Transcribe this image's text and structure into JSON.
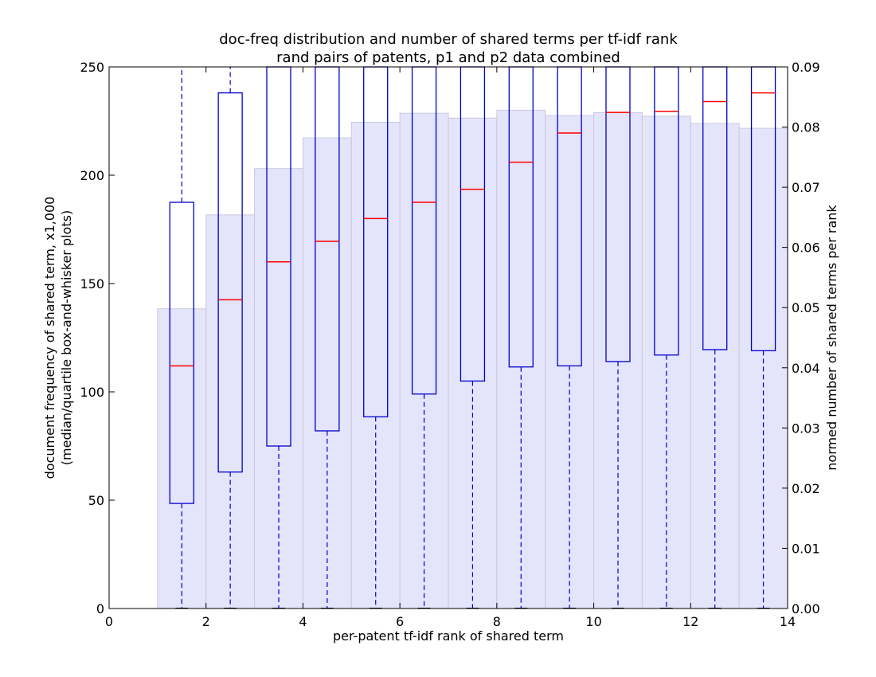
{
  "chart_data": {
    "type": "bar",
    "title": [
      "doc-freq distribution and number of shared terms per tf-idf rank",
      "rand pairs of patents, p1 and p2 data combined"
    ],
    "xlabel": "per-patent tf-idf rank of shared term",
    "ylabel": [
      "document frequency of shared term, x1,000",
      "(median/quartile box-and-whisker plots)"
    ],
    "y2label": "normed number of shared terms per rank",
    "xlim": [
      0,
      14
    ],
    "ylim": [
      0,
      250
    ],
    "y2lim": [
      0,
      0.09
    ],
    "x_ticks": [
      "0",
      "2",
      "4",
      "6",
      "8",
      "10",
      "12",
      "14"
    ],
    "y_ticks": [
      "0",
      "50",
      "100",
      "150",
      "200",
      "250"
    ],
    "y2_ticks": [
      "0.00",
      "0.01",
      "0.02",
      "0.03",
      "0.04",
      "0.05",
      "0.06",
      "0.07",
      "0.08",
      "0.09"
    ],
    "grid": false,
    "colors": {
      "hist_fill": "#e4e4fb",
      "hist_edge": "#c8c8e0",
      "box": "#0000cc",
      "median": "#ff0000"
    },
    "histogram": {
      "name": "normed number of shared terms per rank",
      "axis": "right",
      "bins": [
        {
          "x0": 1,
          "x1": 2,
          "value": 0.0498
        },
        {
          "x0": 2,
          "x1": 3,
          "value": 0.0654
        },
        {
          "x0": 3,
          "x1": 4,
          "value": 0.0731
        },
        {
          "x0": 4,
          "x1": 5,
          "value": 0.0782
        },
        {
          "x0": 5,
          "x1": 6,
          "value": 0.0808
        },
        {
          "x0": 6,
          "x1": 7,
          "value": 0.0823
        },
        {
          "x0": 7,
          "x1": 8,
          "value": 0.0815
        },
        {
          "x0": 8,
          "x1": 9,
          "value": 0.0828
        },
        {
          "x0": 9,
          "x1": 10,
          "value": 0.0819
        },
        {
          "x0": 10,
          "x1": 11,
          "value": 0.0824
        },
        {
          "x0": 11,
          "x1": 12,
          "value": 0.0818
        },
        {
          "x0": 12,
          "x1": 13,
          "value": 0.0806
        },
        {
          "x0": 13,
          "x1": 14,
          "value": 0.0798
        }
      ]
    },
    "boxplots": {
      "axis": "left",
      "boxes": [
        {
          "x": 1.5,
          "q1": 48.5,
          "median": 112,
          "q3": 187.5,
          "whisker_low": 0,
          "whisker_high": 250
        },
        {
          "x": 2.5,
          "q1": 63,
          "median": 142.5,
          "q3": 238,
          "whisker_low": 0,
          "whisker_high": 250
        },
        {
          "x": 3.5,
          "q1": 75,
          "median": 160,
          "q3": 250,
          "whisker_low": 0,
          "whisker_high": 250
        },
        {
          "x": 4.5,
          "q1": 82,
          "median": 169.5,
          "q3": 250,
          "whisker_low": 0,
          "whisker_high": 250
        },
        {
          "x": 5.5,
          "q1": 88.5,
          "median": 180,
          "q3": 250,
          "whisker_low": 0,
          "whisker_high": 250
        },
        {
          "x": 6.5,
          "q1": 99,
          "median": 187.5,
          "q3": 250,
          "whisker_low": 0,
          "whisker_high": 250
        },
        {
          "x": 7.5,
          "q1": 105,
          "median": 193.5,
          "q3": 250,
          "whisker_low": 0,
          "whisker_high": 250
        },
        {
          "x": 8.5,
          "q1": 111.5,
          "median": 206,
          "q3": 250,
          "whisker_low": 0,
          "whisker_high": 250
        },
        {
          "x": 9.5,
          "q1": 112,
          "median": 219.5,
          "q3": 250,
          "whisker_low": 0,
          "whisker_high": 250
        },
        {
          "x": 10.5,
          "q1": 114,
          "median": 229,
          "q3": 250,
          "whisker_low": 0,
          "whisker_high": 250
        },
        {
          "x": 11.5,
          "q1": 117,
          "median": 229.5,
          "q3": 250,
          "whisker_low": 0,
          "whisker_high": 250
        },
        {
          "x": 12.5,
          "q1": 119.5,
          "median": 234,
          "q3": 250,
          "whisker_low": 0,
          "whisker_high": 250
        },
        {
          "x": 13.5,
          "q1": 119,
          "median": 238,
          "q3": 250,
          "whisker_low": 0,
          "whisker_high": 250
        }
      ]
    }
  }
}
